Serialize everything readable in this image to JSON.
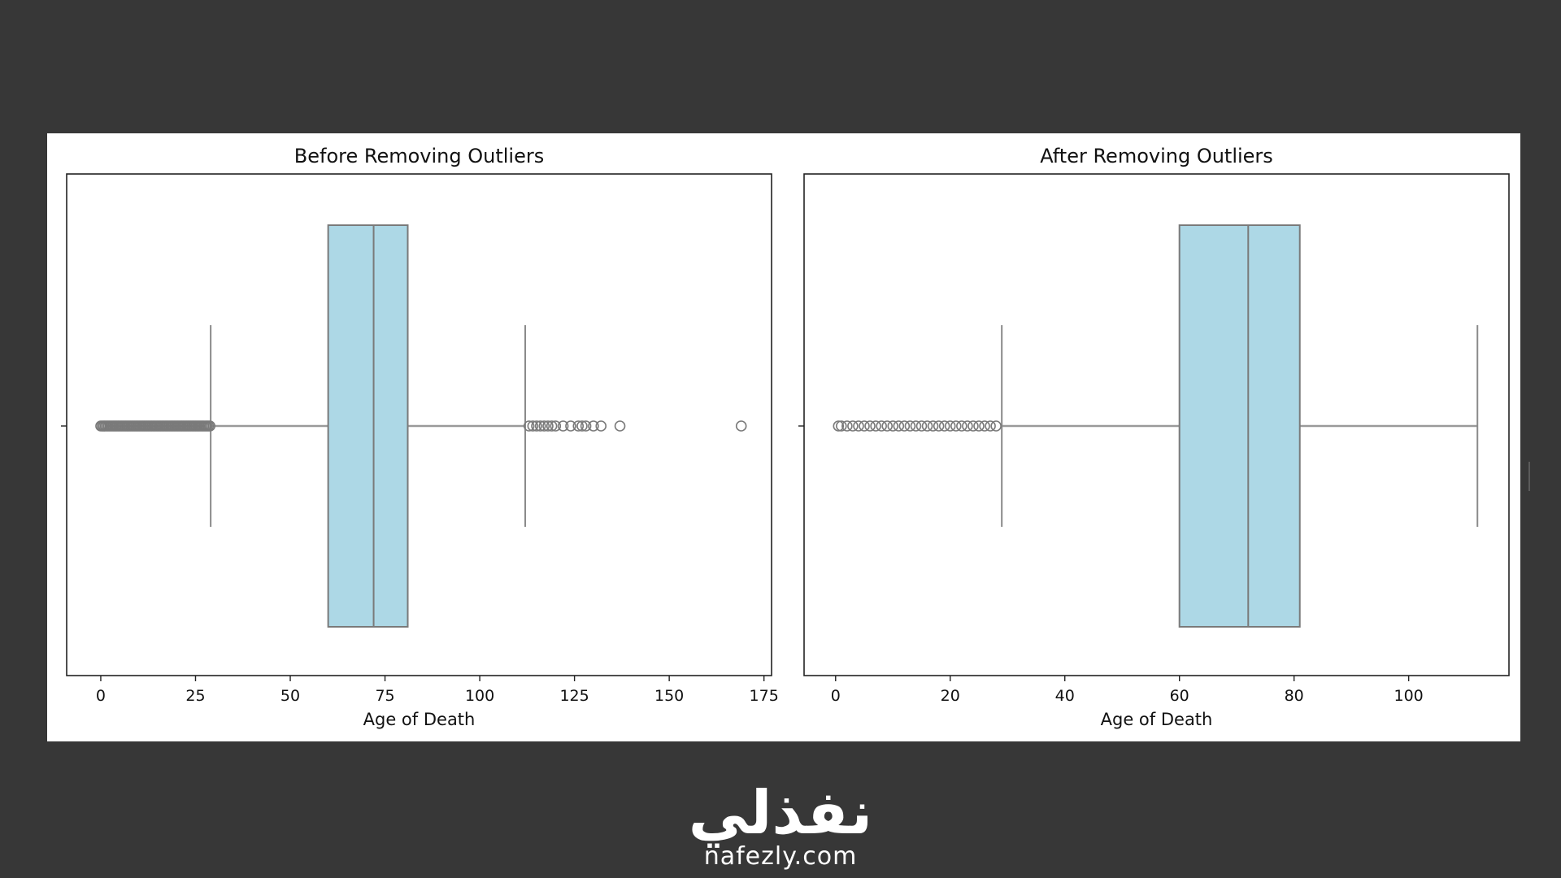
{
  "chart_data": [
    {
      "type": "box",
      "title": "Before Removing Outliers",
      "xlabel": "Age of Death",
      "xlim": [
        -9,
        177
      ],
      "xticks": [
        0,
        25,
        50,
        75,
        100,
        125,
        150,
        175
      ],
      "box": {
        "whisker_low": 29,
        "q1": 60,
        "median": 72,
        "q3": 81,
        "whisker_high": 112
      },
      "outliers_low_range": [
        0,
        29
      ],
      "outliers_high": [
        113,
        114,
        115,
        116,
        117,
        118,
        119,
        120,
        122,
        124,
        126,
        127,
        128,
        130,
        132,
        137,
        169
      ],
      "box_color": "#add8e6",
      "grid": false
    },
    {
      "type": "box",
      "title": "After Removing Outliers",
      "xlabel": "Age of Death",
      "xlim": [
        -5.5,
        117.5
      ],
      "xticks": [
        0,
        20,
        40,
        60,
        80,
        100
      ],
      "box": {
        "whisker_low": 29,
        "q1": 60,
        "median": 72,
        "q3": 81,
        "whisker_high": 112
      },
      "outliers_low": [
        0.5,
        1,
        2,
        3,
        4,
        5,
        6,
        7,
        8,
        9,
        10,
        11,
        12,
        13,
        14,
        15,
        16,
        17,
        18,
        19,
        20,
        21,
        22,
        23,
        24,
        25,
        26,
        27,
        28
      ],
      "outliers_high": [],
      "box_color": "#add8e6",
      "grid": false
    }
  ],
  "brand": {
    "logo": "نفذلي",
    "url": "nafezly.com"
  }
}
